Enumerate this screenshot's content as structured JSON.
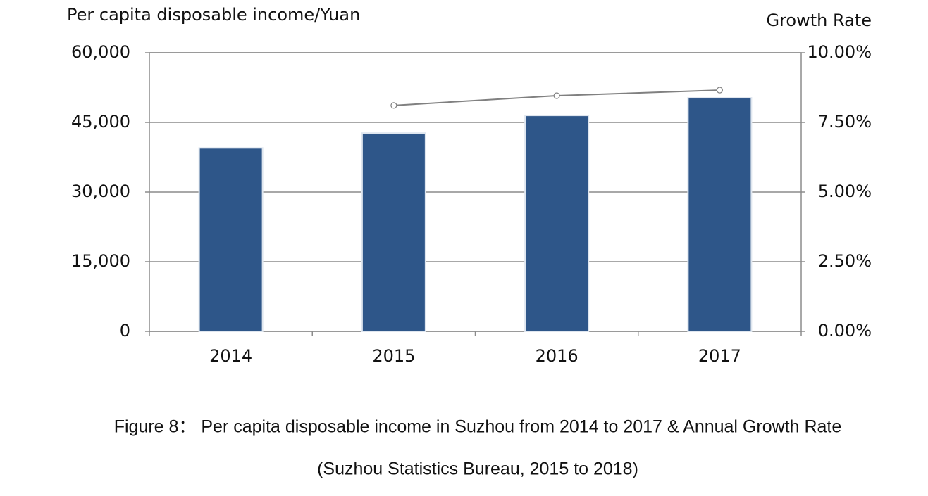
{
  "chart_data": {
    "type": "bar-line",
    "y_axis_label": "Per capita disposable income/Yuan",
    "y2_axis_label": "Growth Rate",
    "caption": "Figure 8： Per capita disposable income in Suzhou from 2014 to 2017 & Annual Growth Rate",
    "source": "(Suzhou Statistics Bureau, 2015 to 2018)",
    "categories": [
      "2014",
      "2015",
      "2016",
      "2017"
    ],
    "series": [
      {
        "type": "bar",
        "color": "#2e5689",
        "values": [
          39500,
          42700,
          46500,
          50300
        ]
      },
      {
        "type": "line",
        "axis": "y2",
        "color": "#808080",
        "values": [
          null,
          8.11,
          8.46,
          8.66
        ]
      }
    ],
    "ylim": [
      0,
      60000
    ],
    "yticks": [
      0,
      {
        "value": 15000,
        "label": "15,000"
      },
      {
        "value": 30000,
        "label": "30,000"
      },
      {
        "value": 45000,
        "label": "45,000"
      },
      {
        "value": 60000,
        "label": "60,000"
      }
    ],
    "y2lim": [
      0,
      10
    ],
    "y2ticks": [
      {
        "value": 0,
        "label": "0.00%"
      },
      {
        "value": 2.5,
        "label": "2.50%"
      },
      {
        "value": 5,
        "label": "5.00%"
      },
      {
        "value": 7.5,
        "label": "7.50%"
      },
      {
        "value": 10,
        "label": "10.00%"
      }
    ],
    "grid": true
  }
}
